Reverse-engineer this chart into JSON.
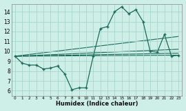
{
  "bg_color": "#ceeee8",
  "line_color": "#1a6b5a",
  "grid_color": "#aad4cc",
  "xlabel": "Humidex (Indice chaleur)",
  "xlim": [
    -0.5,
    23.5
  ],
  "ylim": [
    5.5,
    14.8
  ],
  "yticks": [
    6,
    7,
    8,
    9,
    10,
    11,
    12,
    13,
    14
  ],
  "xticks": [
    0,
    1,
    2,
    3,
    4,
    5,
    6,
    7,
    8,
    9,
    10,
    11,
    12,
    13,
    14,
    15,
    16,
    17,
    18,
    19,
    20,
    21,
    22,
    23
  ],
  "main_x": [
    0,
    1,
    2,
    3,
    4,
    5,
    6,
    7,
    8,
    9,
    10,
    11,
    12,
    13,
    14,
    15,
    16,
    17,
    18,
    19,
    20,
    21,
    22,
    23
  ],
  "main_y": [
    9.5,
    8.8,
    8.6,
    8.6,
    8.2,
    8.3,
    8.5,
    7.7,
    6.1,
    6.3,
    6.3,
    9.5,
    12.3,
    12.5,
    14.0,
    14.5,
    13.8,
    14.2,
    13.0,
    10.0,
    9.9,
    11.7,
    9.5,
    9.6
  ],
  "diag_lines": [
    [
      0,
      9.5,
      23,
      9.6
    ],
    [
      0,
      9.5,
      23,
      9.8
    ],
    [
      0,
      9.5,
      23,
      10.2
    ],
    [
      0,
      9.5,
      23,
      11.5
    ]
  ]
}
